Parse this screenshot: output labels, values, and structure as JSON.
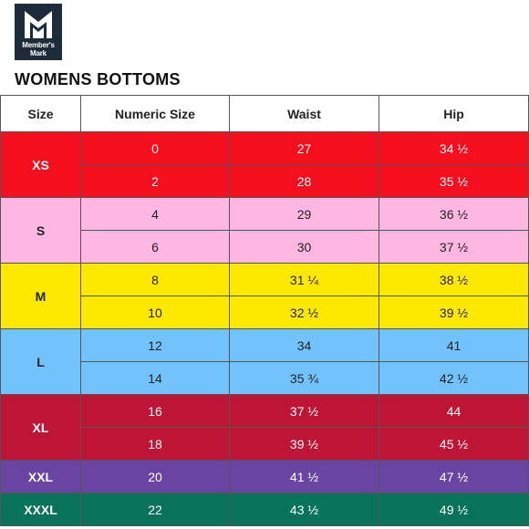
{
  "brand": {
    "logo_text": "Member's Mark",
    "logo_color": "#1d2b3a"
  },
  "title": "WOMENS BOTTOMS",
  "table": {
    "headers": [
      "Size",
      "Numeric Size",
      "Waist",
      "Hip"
    ],
    "groups": [
      {
        "size": "XS",
        "bg": "#f50f1e",
        "fg": "#ffffff",
        "rows": [
          {
            "numeric": "0",
            "waist": "27",
            "hip": "34 ½"
          },
          {
            "numeric": "2",
            "waist": "28",
            "hip": "35 ½"
          }
        ]
      },
      {
        "size": "S",
        "bg": "#fdb7e2",
        "fg": "#222222",
        "rows": [
          {
            "numeric": "4",
            "waist": "29",
            "hip": "36 ½"
          },
          {
            "numeric": "6",
            "waist": "30",
            "hip": "37 ½"
          }
        ]
      },
      {
        "size": "M",
        "bg": "#fde800",
        "fg": "#222222",
        "rows": [
          {
            "numeric": "8",
            "waist": "31 ¼",
            "hip": "38 ½"
          },
          {
            "numeric": "10",
            "waist": "32 ½",
            "hip": "39 ½"
          }
        ]
      },
      {
        "size": "L",
        "bg": "#72c3fb",
        "fg": "#222222",
        "rows": [
          {
            "numeric": "12",
            "waist": "34",
            "hip": "41"
          },
          {
            "numeric": "14",
            "waist": "35 ¾",
            "hip": "42 ½"
          }
        ]
      },
      {
        "size": "XL",
        "bg": "#be1537",
        "fg": "#ffffff",
        "rows": [
          {
            "numeric": "16",
            "waist": "37 ½",
            "hip": "44"
          },
          {
            "numeric": "18",
            "waist": "39 ½",
            "hip": "45 ½"
          }
        ]
      },
      {
        "size": "XXL",
        "bg": "#6a44a2",
        "fg": "#ffffff",
        "rows": [
          {
            "numeric": "20",
            "waist": "41 ½",
            "hip": "47 ½"
          }
        ]
      },
      {
        "size": "XXXL",
        "bg": "#08725a",
        "fg": "#ffffff",
        "rows": [
          {
            "numeric": "22",
            "waist": "43 ½",
            "hip": "49 ½"
          }
        ]
      }
    ]
  }
}
